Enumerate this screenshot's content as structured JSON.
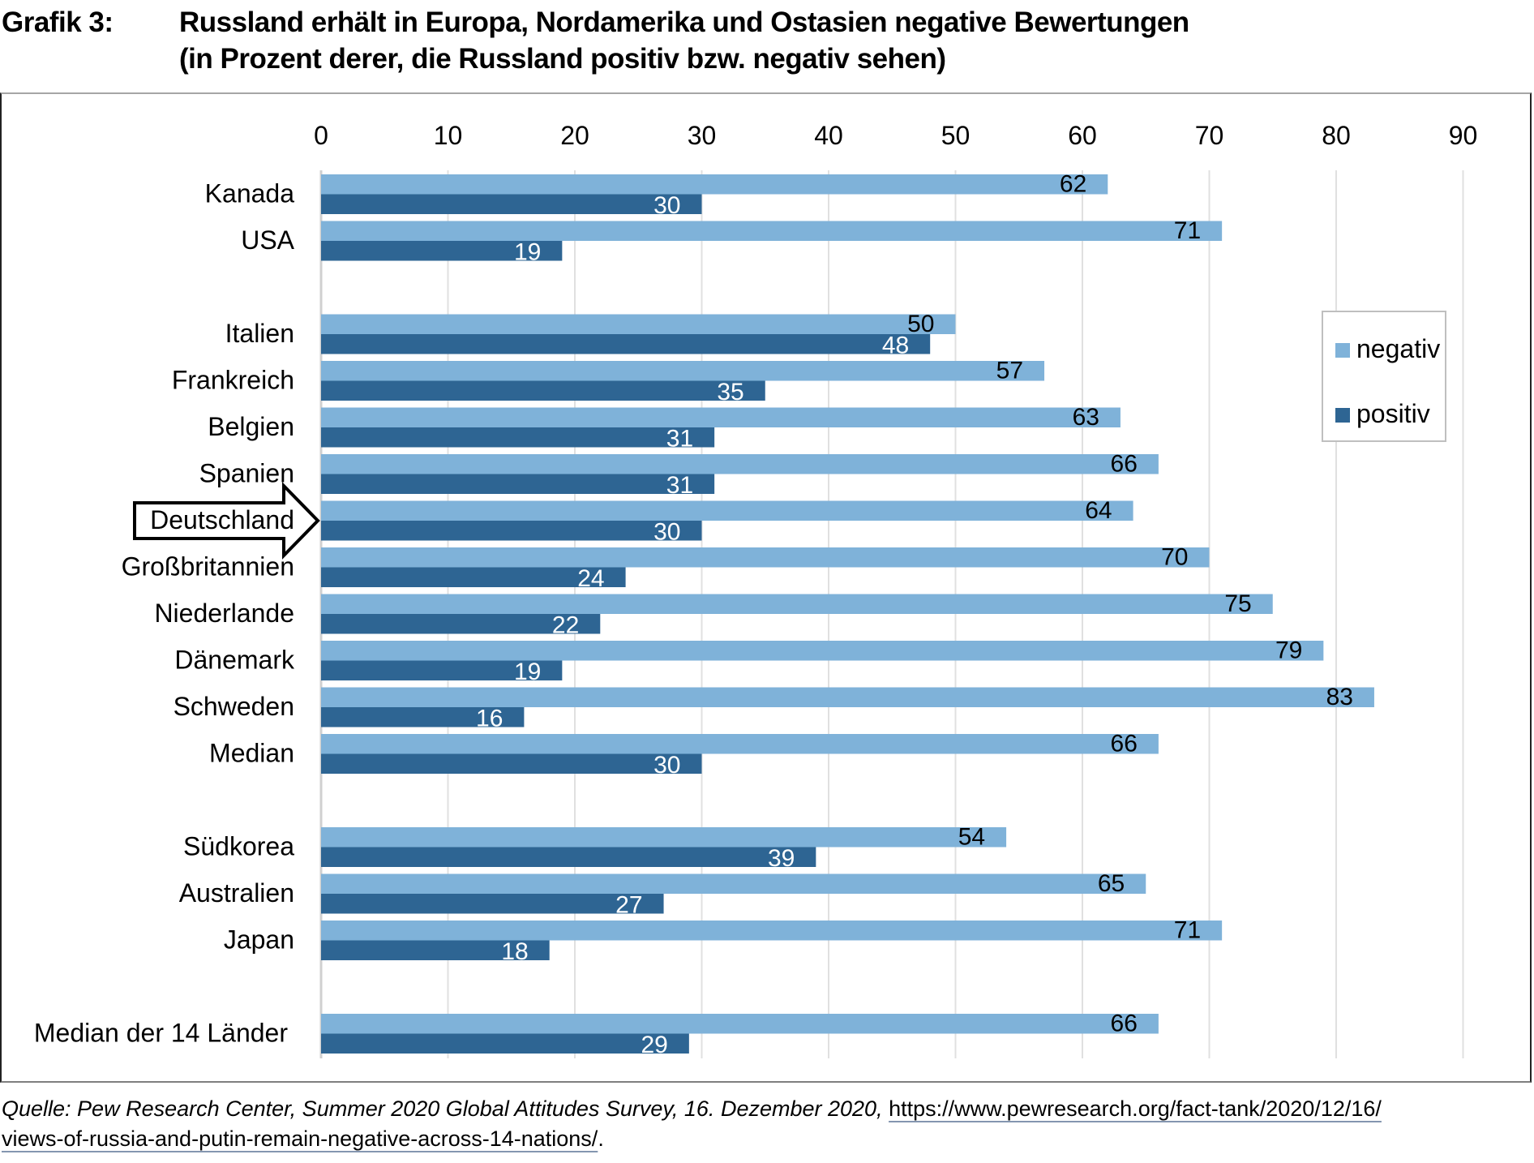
{
  "header": {
    "figure_number": "Grafik 3:",
    "title_line1": "Russland erhält in Europa, Nordamerika und Ostasien negative Bewertungen",
    "title_line2": "(in Prozent derer, die Russland positiv bzw. negativ sehen)"
  },
  "colors": {
    "negativ": "#7fb2d9",
    "positiv": "#2e6593",
    "gridline": "#e0e0e0",
    "highlight_arrow": "#000000"
  },
  "chart_data": {
    "type": "bar",
    "orientation": "horizontal",
    "title": "Russland erhält in Europa, Nordamerika und Ostasien negative Bewertungen (in Prozent derer, die Russland positiv bzw. negativ sehen)",
    "xlabel": "",
    "ylabel": "",
    "xlim": [
      0,
      90
    ],
    "x_ticks": [
      "0",
      "10",
      "20",
      "30",
      "40",
      "50",
      "60",
      "70",
      "80",
      "90"
    ],
    "x_tick_values": [
      0,
      10,
      20,
      30,
      40,
      50,
      60,
      70,
      80,
      90
    ],
    "x_axis_position": "top",
    "grid": true,
    "legend": {
      "position": "right",
      "entries": [
        "negativ",
        "positiv"
      ]
    },
    "highlighted_category": "Deutschland",
    "categories": [
      "Kanada",
      "USA",
      "Italien",
      "Frankreich",
      "Belgien",
      "Spanien",
      "Deutschland",
      "Großbritannien",
      "Niederlande",
      "Dänemark",
      "Schweden",
      "Median",
      "Südkorea",
      "Australien",
      "Japan",
      "Median der 14 Länder"
    ],
    "groups": [
      [
        "Kanada",
        "USA"
      ],
      [
        "Italien",
        "Frankreich",
        "Belgien",
        "Spanien",
        "Deutschland",
        "Großbritannien",
        "Niederlande",
        "Dänemark",
        "Schweden",
        "Median"
      ],
      [
        "Südkorea",
        "Australien",
        "Japan"
      ],
      [
        "Median der 14 Länder"
      ]
    ],
    "series": [
      {
        "name": "negativ",
        "values": [
          62,
          71,
          50,
          57,
          63,
          66,
          64,
          70,
          75,
          79,
          83,
          66,
          54,
          65,
          71,
          66
        ]
      },
      {
        "name": "positiv",
        "values": [
          30,
          19,
          48,
          35,
          31,
          31,
          30,
          24,
          22,
          19,
          16,
          30,
          39,
          27,
          18,
          29
        ]
      }
    ]
  },
  "source": {
    "prefix": "Quelle: Pew Research Center, Summer 2020 Global Attitudes Survey, 16. Dezember 2020, ",
    "link_line1": "https://www.pewresearch.org/fact-tank/2020/12/16/",
    "link_line2": "views-of-russia-and-putin-remain-negative-across-14-nations/",
    "suffix": "."
  }
}
